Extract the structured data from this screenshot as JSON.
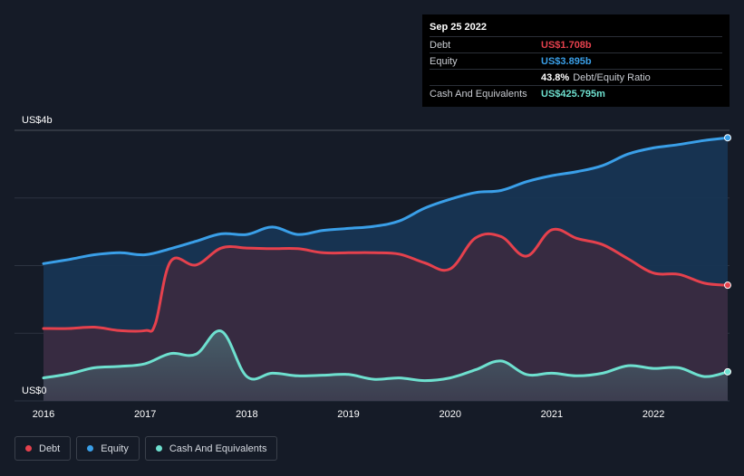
{
  "colors": {
    "debt": "#e5414d",
    "equity": "#3a9fe8",
    "cash": "#6ee0cf",
    "background": "#151b27"
  },
  "tooltip": {
    "date": "Sep 25 2022",
    "debt_label": "Debt",
    "debt_value": "US$1.708b",
    "equity_label": "Equity",
    "equity_value": "US$3.895b",
    "ratio_value": "43.8%",
    "ratio_label": "Debt/Equity Ratio",
    "cash_label": "Cash And Equivalents",
    "cash_value": "US$425.795m"
  },
  "legend": {
    "debt": "Debt",
    "equity": "Equity",
    "cash": "Cash And Equivalents"
  },
  "chart_data": {
    "type": "area",
    "y_top_label": "US$4b",
    "y_bottom_label": "US$0",
    "ylim": [
      0,
      4
    ],
    "xlim": [
      2016,
      2022.73
    ],
    "x_ticks": [
      "2016",
      "2017",
      "2018",
      "2019",
      "2020",
      "2021",
      "2022"
    ],
    "grid": true,
    "series": [
      {
        "name": "Equity",
        "key": "equity",
        "x": [
          2016.0,
          2016.25,
          2016.5,
          2016.75,
          2017.0,
          2017.25,
          2017.5,
          2017.75,
          2018.0,
          2018.25,
          2018.5,
          2018.75,
          2019.0,
          2019.25,
          2019.5,
          2019.75,
          2020.0,
          2020.25,
          2020.5,
          2020.75,
          2021.0,
          2021.25,
          2021.5,
          2021.75,
          2022.0,
          2022.25,
          2022.5,
          2022.73
        ],
        "y": [
          2.03,
          2.09,
          2.16,
          2.19,
          2.16,
          2.25,
          2.36,
          2.47,
          2.46,
          2.57,
          2.46,
          2.52,
          2.55,
          2.58,
          2.66,
          2.85,
          2.98,
          3.08,
          3.11,
          3.24,
          3.33,
          3.39,
          3.48,
          3.65,
          3.74,
          3.79,
          3.85,
          3.89
        ]
      },
      {
        "name": "Debt",
        "key": "debt",
        "x": [
          2016.0,
          2016.25,
          2016.5,
          2016.75,
          2017.0,
          2017.1,
          2017.25,
          2017.5,
          2017.75,
          2018.0,
          2018.25,
          2018.5,
          2018.75,
          2019.0,
          2019.25,
          2019.5,
          2019.75,
          2020.0,
          2020.25,
          2020.5,
          2020.75,
          2021.0,
          2021.25,
          2021.5,
          2021.75,
          2022.0,
          2022.25,
          2022.5,
          2022.73
        ],
        "y": [
          1.07,
          1.07,
          1.09,
          1.04,
          1.04,
          1.14,
          2.06,
          2.01,
          2.26,
          2.26,
          2.25,
          2.25,
          2.19,
          2.19,
          2.19,
          2.17,
          2.04,
          1.95,
          2.41,
          2.43,
          2.14,
          2.53,
          2.4,
          2.31,
          2.1,
          1.89,
          1.87,
          1.74,
          1.71
        ]
      },
      {
        "name": "Cash And Equivalents",
        "key": "cash",
        "x": [
          2016.0,
          2016.25,
          2016.5,
          2016.75,
          2017.0,
          2017.25,
          2017.5,
          2017.75,
          2018.0,
          2018.25,
          2018.5,
          2018.75,
          2019.0,
          2019.25,
          2019.5,
          2019.75,
          2020.0,
          2020.25,
          2020.5,
          2020.75,
          2021.0,
          2021.25,
          2021.5,
          2021.75,
          2022.0,
          2022.25,
          2022.5,
          2022.73
        ],
        "y": [
          0.34,
          0.4,
          0.49,
          0.51,
          0.55,
          0.7,
          0.69,
          1.03,
          0.36,
          0.41,
          0.37,
          0.38,
          0.39,
          0.32,
          0.34,
          0.3,
          0.34,
          0.46,
          0.59,
          0.39,
          0.41,
          0.37,
          0.41,
          0.52,
          0.48,
          0.49,
          0.36,
          0.43
        ]
      }
    ]
  }
}
